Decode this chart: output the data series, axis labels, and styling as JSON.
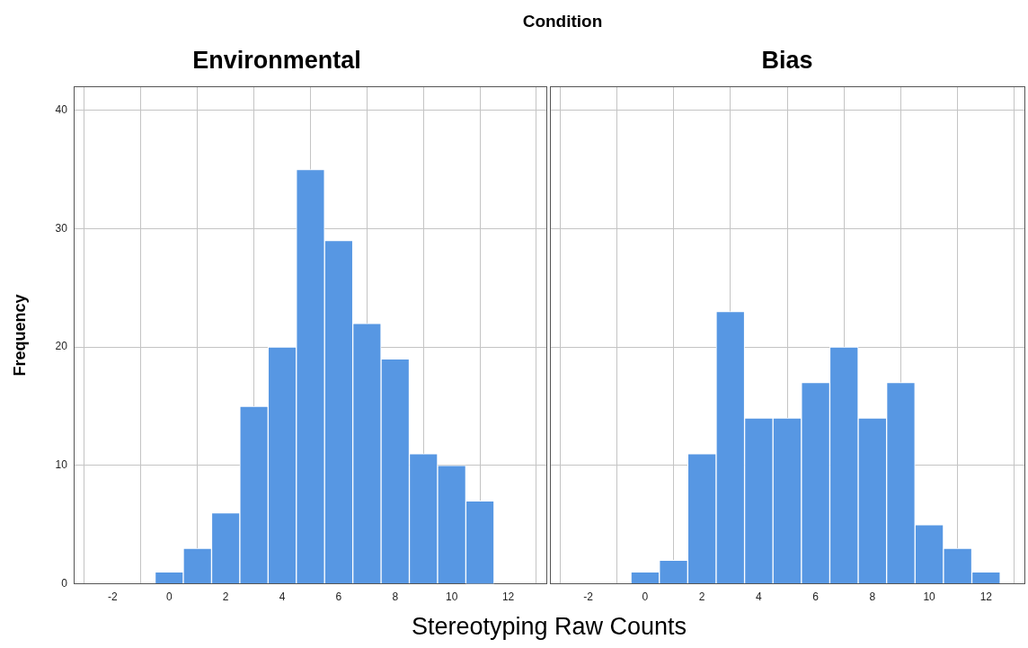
{
  "chart_data": [
    {
      "type": "histogram",
      "title": "Environmental",
      "ylabel": "Frequency",
      "xlabel": "Stereotyping Raw Counts",
      "annotations": [
        "Condition"
      ],
      "color": "#5797e3",
      "bins": [
        -0.5,
        0.5,
        1.5,
        2.5,
        3.5,
        4.5,
        5.5,
        6.5,
        7.5,
        8.5,
        9.5,
        10.5,
        11.5
      ],
      "values": [
        1,
        3,
        6,
        15,
        20,
        35,
        29,
        22,
        19,
        11,
        10,
        7
      ],
      "xlim": [
        -3.35,
        13.35
      ],
      "xticks": [
        -2,
        0,
        2,
        4,
        6,
        8,
        10,
        12
      ],
      "ylim": [
        0,
        42
      ],
      "yticks": [
        0,
        10,
        20,
        30,
        40
      ],
      "grid": true
    },
    {
      "type": "histogram",
      "title": "Bias",
      "color": "#5797e3",
      "bins": [
        -0.5,
        0.5,
        1.5,
        2.5,
        3.5,
        4.5,
        5.5,
        6.5,
        7.5,
        8.5,
        9.5,
        10.5,
        11.5,
        12.5
      ],
      "values": [
        1,
        2,
        11,
        23,
        14,
        14,
        17,
        20,
        14,
        17,
        5,
        3,
        1
      ],
      "xlim": [
        -3.35,
        13.35
      ],
      "xticks": [
        -2,
        0,
        2,
        4,
        6,
        8,
        10,
        12
      ],
      "ylim": [
        0,
        42
      ],
      "yticks": [
        0,
        10,
        20,
        30,
        40
      ],
      "grid": true,
      "tick_labels": "x"
    }
  ]
}
